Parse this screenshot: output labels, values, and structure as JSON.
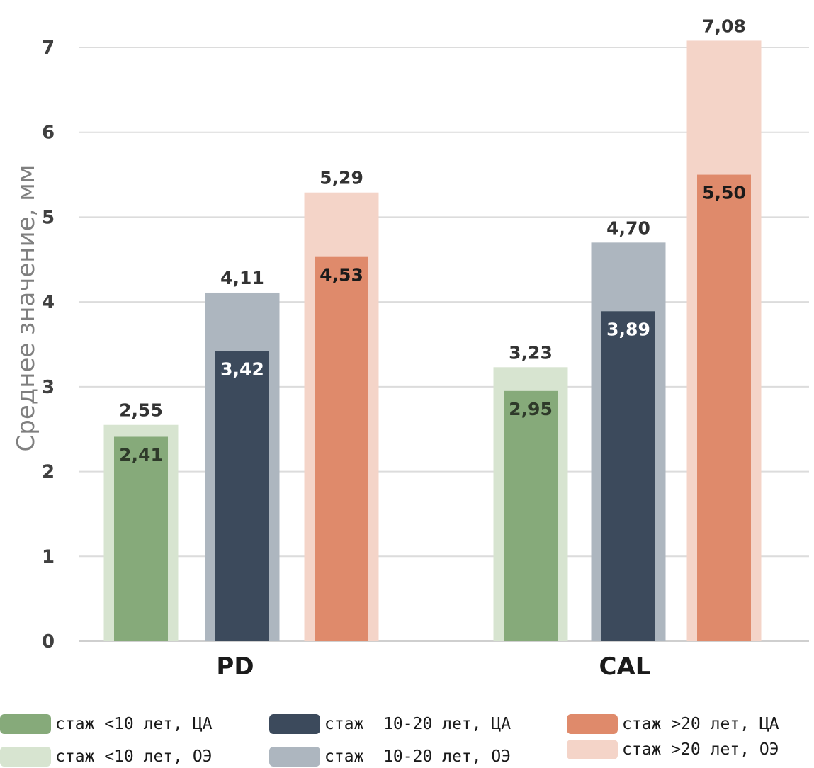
{
  "chart_data": {
    "type": "bar",
    "title": "",
    "xlabel": "",
    "ylabel": "Среднее значение, мм",
    "ylim": [
      0,
      7
    ],
    "yticks": [
      "0",
      "1",
      "2",
      "3",
      "4",
      "5",
      "6",
      "7"
    ],
    "grid": true,
    "categories": [
      "PD",
      "CAL"
    ],
    "series": [
      {
        "name": "стаж <10 лет, ОЭ",
        "color": "#d7e4d0",
        "values": [
          2.55,
          3.23
        ],
        "labels": [
          "2,55",
          "3,23"
        ]
      },
      {
        "name": "стаж <10 лет, ЦА",
        "color": "#86aa7a",
        "values": [
          2.41,
          2.95
        ],
        "labels": [
          "2,41",
          "2,95"
        ]
      },
      {
        "name": "стаж 10-20 лет, ОЭ",
        "color": "#adb6bf",
        "values": [
          4.11,
          4.7
        ],
        "labels": [
          "4,11",
          "4,70"
        ]
      },
      {
        "name": "стаж 10-20 лет, ЦА",
        "color": "#3c4a5c",
        "values": [
          3.42,
          3.89
        ],
        "labels": [
          "3,42",
          "3,89"
        ]
      },
      {
        "name": "стаж >20 лет, ОЭ",
        "color": "#f4d4c8",
        "values": [
          5.29,
          7.08
        ],
        "labels": [
          "5,29",
          "7,08"
        ]
      },
      {
        "name": "стаж >20 лет, ЦА",
        "color": "#df8a6b",
        "values": [
          4.53,
          5.5
        ],
        "labels": [
          "4,53",
          "5,50"
        ]
      }
    ],
    "legend": {
      "placement": "bottom",
      "items": [
        {
          "label": "стаж <10 лет, ЦА",
          "color": "#86aa7a"
        },
        {
          "label": "стаж  10-20 лет, ЦА",
          "color": "#3c4a5c"
        },
        {
          "label": "стаж >20 лет, ЦА",
          "color": "#df8a6b"
        },
        {
          "label": "стаж <10 лет, ОЭ",
          "color": "#d7e4d0"
        },
        {
          "label": "стаж  10-20 лет, ОЭ",
          "color": "#adb6bf"
        },
        {
          "label": "стаж >20 лет, ОЭ",
          "color": "#f4d4c8"
        }
      ]
    }
  }
}
